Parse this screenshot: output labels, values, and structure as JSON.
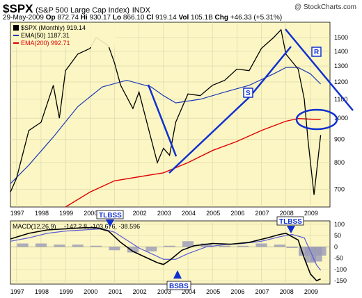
{
  "header": {
    "symbol": "$SPX",
    "name": "(S&P 500 Large Cap Index)",
    "exchange": "INDX",
    "date": "29-May-2009",
    "open_label": "Op",
    "open": "872.74",
    "high_label": "Hi",
    "high": "930.17",
    "low_label": "Lo",
    "low": "866.10",
    "close_label": "Cl",
    "close": "919.14",
    "vol_label": "Vol",
    "vol": "105.1B",
    "chg_label": "Chg",
    "chg": "+46.33 (+5.31%)",
    "watermark": "@ StockCharts.com"
  },
  "legend": {
    "price": "$SPX (Monthly) 919.14",
    "ema50": "EMA(50) 1187.31",
    "ema200": "EMA(200) 992.71"
  },
  "macd_legend": {
    "label": "MACD(12,26,9)",
    "values": "-142.2 8, -103.676, -38.596"
  },
  "annotations": {
    "S": "S",
    "R": "R",
    "tlbss_top_left": "TLBSS",
    "tlbss_top_right": "TLBSS",
    "bsbs": "BSBS"
  },
  "colors": {
    "panel_bg": "#fbf6c4",
    "grid": "#d8d3a6",
    "price": "#000000",
    "ema50": "#1e3ab8",
    "ema200": "#e00000",
    "trendline": "#1030d0",
    "macd": "#000000",
    "signal": "#5b5bd6",
    "hist": "#9a9ab8"
  },
  "chart_data": [
    {
      "type": "line",
      "title": "$SPX (S&P 500 Large Cap Index) INDX",
      "scale": "log",
      "ylim": [
        640,
        1620
      ],
      "y_ticks": [
        700,
        800,
        900,
        1000,
        1100,
        1200,
        1300,
        1400,
        1500
      ],
      "x_ticks": [
        "1997",
        "1998",
        "1999",
        "2000",
        "2001",
        "2002",
        "2003",
        "2004",
        "2005",
        "2006",
        "2007",
        "2008",
        "2009"
      ],
      "series": [
        {
          "name": "$SPX (Monthly)",
          "x": [
            1996.75,
            1997.0,
            1997.5,
            1998.0,
            1998.5,
            1998.75,
            1999.0,
            1999.5,
            2000.0,
            2000.25,
            2000.75,
            2001.0,
            2001.25,
            2001.75,
            2002.0,
            2002.5,
            2002.75,
            2003.0,
            2003.25,
            2003.5,
            2004.0,
            2004.5,
            2005.0,
            2005.5,
            2006.0,
            2006.5,
            2007.0,
            2007.5,
            2007.8,
            2008.0,
            2008.5,
            2008.75,
            2008.9,
            2009.15,
            2009.42
          ],
          "values": [
            690,
            740,
            940,
            980,
            1180,
            1000,
            1270,
            1380,
            1420,
            1500,
            1440,
            1320,
            1180,
            1050,
            1140,
            900,
            800,
            860,
            830,
            980,
            1130,
            1120,
            1180,
            1210,
            1280,
            1270,
            1420,
            1500,
            1560,
            1380,
            1280,
            1100,
            900,
            680,
            919
          ]
        },
        {
          "name": "EMA(50)",
          "x": [
            1996.75,
            1997.5,
            1998.5,
            1999.5,
            2000.5,
            2001.5,
            2002.5,
            2003.0,
            2003.5,
            2004.5,
            2005.5,
            2006.5,
            2007.5,
            2008.0,
            2008.5,
            2009.0,
            2009.42
          ],
          "values": [
            720,
            790,
            910,
            1060,
            1170,
            1210,
            1170,
            1120,
            1080,
            1100,
            1140,
            1180,
            1250,
            1290,
            1290,
            1250,
            1187.31
          ]
        },
        {
          "name": "EMA(200)",
          "x": [
            1999.0,
            2000.0,
            2001.0,
            2002.0,
            2003.0,
            2004.0,
            2005.0,
            2006.0,
            2007.0,
            2008.0,
            2008.5,
            2009.0,
            2009.42
          ],
          "values": [
            640,
            690,
            730,
            745,
            760,
            800,
            850,
            890,
            940,
            985,
            998,
            995,
            992.71
          ]
        }
      ]
    },
    {
      "type": "line",
      "title": "MACD(12,26,9)",
      "ylim": [
        -165,
        115
      ],
      "y_ticks": [
        100,
        50,
        0,
        -50,
        -100,
        -150
      ],
      "x_ticks": [
        "1997",
        "1998",
        "1999",
        "2000",
        "2001",
        "2002",
        "2003",
        "2004",
        "2005",
        "2006",
        "2007",
        "2008",
        "2009"
      ],
      "series": [
        {
          "name": "MACD",
          "x": [
            1996.75,
            1997.5,
            1998.25,
            1999.0,
            1999.75,
            2000.25,
            2000.75,
            2001.25,
            2001.75,
            2002.25,
            2002.75,
            2003.0,
            2003.25,
            2003.75,
            2004.25,
            2005.0,
            2005.75,
            2006.5,
            2007.25,
            2007.75,
            2008.0,
            2008.5,
            2008.75,
            2009.0,
            2009.25,
            2009.42
          ],
          "values": [
            35,
            60,
            75,
            80,
            85,
            85,
            70,
            20,
            -20,
            -45,
            -70,
            -78,
            -60,
            -15,
            5,
            15,
            12,
            20,
            40,
            55,
            60,
            30,
            -50,
            -120,
            -150,
            -142.28
          ]
        },
        {
          "name": "Signal",
          "x": [
            1996.75,
            1997.5,
            1998.25,
            1999.0,
            1999.75,
            2000.5,
            2001.0,
            2001.5,
            2002.0,
            2002.5,
            2003.0,
            2003.5,
            2004.0,
            2004.75,
            2005.5,
            2006.25,
            2007.0,
            2007.75,
            2008.25,
            2008.75,
            2009.0,
            2009.25,
            2009.42
          ],
          "values": [
            25,
            40,
            60,
            70,
            75,
            80,
            65,
            30,
            -5,
            -30,
            -55,
            -55,
            -30,
            0,
            10,
            15,
            25,
            45,
            55,
            40,
            -20,
            -80,
            -103.676
          ]
        },
        {
          "name": "Histogram",
          "x": [
            1997.25,
            1998.0,
            1998.75,
            1999.5,
            2000.25,
            2001.0,
            2001.75,
            2002.5,
            2003.25,
            2004.0,
            2004.75,
            2005.5,
            2006.25,
            2007.0,
            2007.75,
            2008.25,
            2008.75,
            2009.0,
            2009.25,
            2009.42
          ],
          "values": [
            15,
            15,
            10,
            10,
            5,
            -15,
            -25,
            -20,
            5,
            25,
            15,
            5,
            5,
            15,
            10,
            -5,
            -40,
            -70,
            -65,
            -38.596
          ]
        }
      ]
    }
  ]
}
